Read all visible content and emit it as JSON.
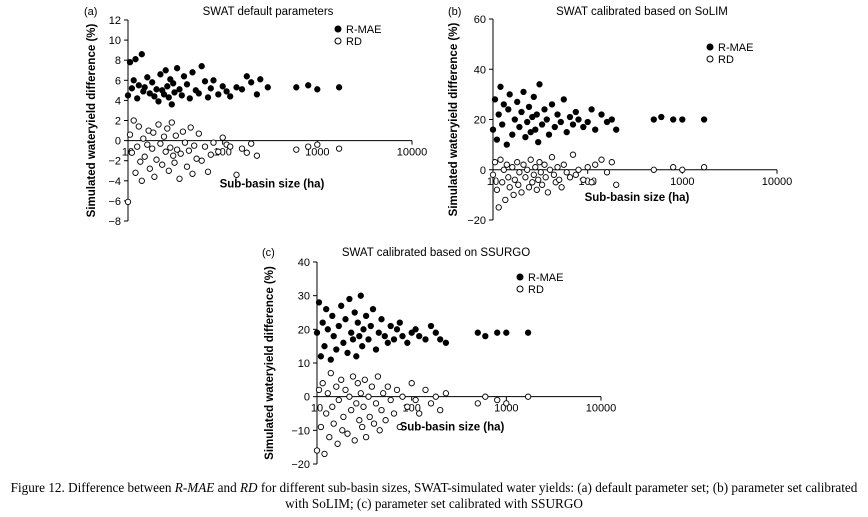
{
  "figure": {
    "caption": {
      "prefix": "Figure 12. Difference between ",
      "term1": "R-MAE",
      "mid1": " and ",
      "term2": "RD",
      "suffix": " for different sub-basin sizes, SWAT-simulated water yields: (a) default parameter set; (b) parameter set calibrated with SoLIM; (c) parameter set calibrated with SSURGO"
    }
  },
  "chart_data": [
    {
      "type": "scatter",
      "panel_label": "(a)",
      "title": "SWAT default parameters",
      "xlabel": "Sub-basin size (ha)",
      "ylabel": "Simulated wateryield difference (%)",
      "x_scale": "log",
      "xlim": [
        10,
        10000
      ],
      "ylim": [
        -8,
        12
      ],
      "x_ticks": [
        "10",
        "100",
        "1000",
        "10000"
      ],
      "y_ticks": [
        "−8",
        "−6",
        "−4",
        "−2",
        "0",
        "2",
        "4",
        "6",
        "8",
        "10",
        "12"
      ],
      "y_tick_values": [
        -8,
        -6,
        -4,
        -2,
        0,
        2,
        4,
        6,
        8,
        10,
        12
      ],
      "legend_position": "top-right",
      "series": [
        {
          "name": "R-MAE",
          "marker": "filled-circle",
          "x": [
            10,
            10.5,
            11,
            11.5,
            12,
            12.5,
            13,
            14,
            14.5,
            15,
            16,
            17,
            18,
            19,
            20,
            21,
            22,
            23,
            24,
            25,
            26,
            27,
            28,
            29,
            30,
            31,
            33,
            35,
            37,
            39,
            42,
            45,
            48,
            52,
            56,
            60,
            65,
            70,
            75,
            80,
            90,
            100,
            110,
            120,
            140,
            160,
            180,
            200,
            230,
            250,
            300,
            600,
            800,
            1000,
            1700
          ],
          "y": [
            4.5,
            7.8,
            5.2,
            6.0,
            8.1,
            4.2,
            5.5,
            8.6,
            4.9,
            5.3,
            6.3,
            4.7,
            5.8,
            4.4,
            5.1,
            3.9,
            6.6,
            5.0,
            4.6,
            7.0,
            5.4,
            4.3,
            6.1,
            3.6,
            5.7,
            4.8,
            7.2,
            5.1,
            4.5,
            6.4,
            5.6,
            4.2,
            6.8,
            5.0,
            4.7,
            7.4,
            5.9,
            4.3,
            5.2,
            6.0,
            4.6,
            5.4,
            4.9,
            4.4,
            5.3,
            5.1,
            6.4,
            5.8,
            4.6,
            6.1,
            5.3,
            5.3,
            5.5,
            5.1,
            5.3
          ]
        },
        {
          "name": "RD",
          "marker": "open-circle",
          "x": [
            10,
            10.5,
            11,
            11.5,
            12,
            12.5,
            13,
            13.5,
            14,
            14.5,
            15,
            16,
            16.5,
            17,
            18,
            18.5,
            19,
            20,
            21,
            22,
            23,
            24,
            25,
            26,
            27,
            28,
            29,
            30,
            31,
            32,
            33,
            35,
            36,
            38,
            40,
            42,
            44,
            46,
            48,
            50,
            53,
            56,
            60,
            65,
            70,
            75,
            80,
            90,
            100,
            110,
            120,
            140,
            160,
            180,
            200,
            230,
            600,
            800,
            1000,
            1700
          ],
          "y": [
            -6.1,
            0.6,
            -1.2,
            2.0,
            -3.2,
            -0.6,
            1.4,
            -2.1,
            -4.0,
            0.2,
            -1.6,
            -0.4,
            1.0,
            -2.8,
            -0.8,
            0.8,
            -3.6,
            -1.9,
            1.6,
            -0.3,
            -2.4,
            0.4,
            -1.1,
            1.2,
            -3.0,
            -0.7,
            1.8,
            -1.5,
            -2.2,
            0.5,
            -0.9,
            -3.8,
            -1.3,
            0.9,
            -0.2,
            -2.6,
            -1.0,
            1.3,
            -3.3,
            -0.5,
            -1.8,
            0.7,
            -2.0,
            -0.6,
            -3.1,
            -1.4,
            -0.2,
            -1.1,
            0.3,
            -0.4,
            -0.6,
            -3.4,
            -0.8,
            -1.2,
            -0.3,
            -1.5,
            -0.9,
            -0.6,
            -0.4,
            -0.8
          ]
        }
      ]
    },
    {
      "type": "scatter",
      "panel_label": "(b)",
      "title": "SWAT calibrated based on SoLIM",
      "xlabel": "Sub-basin size (ha)",
      "ylabel": "Simulated wateryield difference (%)",
      "x_scale": "log",
      "xlim": [
        10,
        10000
      ],
      "ylim": [
        -20,
        60
      ],
      "x_ticks": [
        "10",
        "100",
        "1000",
        "10000"
      ],
      "y_ticks": [
        "−20",
        "0",
        "20",
        "40",
        "60"
      ],
      "y_tick_values": [
        -20,
        0,
        20,
        40,
        60
      ],
      "legend_position": "top-right",
      "series": [
        {
          "name": "R-MAE",
          "marker": "filled-circle",
          "x": [
            10,
            10.5,
            11,
            11.5,
            12,
            12.5,
            13,
            14,
            14.5,
            15,
            16,
            17,
            18,
            19,
            20,
            21,
            22,
            23,
            24,
            25,
            26,
            27,
            28,
            29,
            30,
            31,
            33,
            35,
            37,
            39,
            42,
            45,
            48,
            52,
            56,
            60,
            65,
            70,
            75,
            80,
            90,
            100,
            110,
            120,
            140,
            160,
            180,
            200,
            500,
            600,
            800,
            1000,
            1700
          ],
          "y": [
            16,
            28,
            12,
            22,
            33,
            18,
            26,
            10,
            24,
            30,
            14,
            20,
            27,
            17,
            23,
            31,
            13,
            19,
            25,
            15,
            21,
            29,
            16,
            22,
            11,
            34,
            18,
            24,
            20,
            14,
            26,
            17,
            22,
            19,
            28,
            15,
            21,
            18,
            23,
            20,
            17,
            19,
            24,
            16,
            22,
            19,
            20,
            16,
            20,
            21,
            20,
            20,
            20
          ]
        },
        {
          "name": "RD",
          "marker": "open-circle",
          "x": [
            10,
            10.5,
            11,
            11.5,
            12,
            12.5,
            13,
            13.5,
            14,
            14.5,
            15,
            16,
            16.5,
            17,
            18,
            18.5,
            19,
            20,
            21,
            22,
            23,
            24,
            25,
            26,
            27,
            28,
            29,
            30,
            31,
            32,
            33,
            35,
            36,
            38,
            40,
            42,
            44,
            46,
            48,
            50,
            53,
            56,
            60,
            65,
            70,
            75,
            80,
            90,
            100,
            110,
            120,
            140,
            160,
            180,
            200,
            500,
            800,
            1000,
            1700
          ],
          "y": [
            -2,
            3,
            -8,
            -15,
            4,
            -5,
            0,
            -12,
            2,
            -3,
            -7,
            1,
            -10,
            -4,
            3,
            -6,
            -1,
            -9,
            2,
            -3,
            0,
            -7,
            4,
            -5,
            -2,
            1,
            -8,
            -4,
            3,
            -1,
            -6,
            2,
            -3,
            -9,
            0,
            5,
            -2,
            -5,
            1,
            -4,
            -7,
            2,
            -1,
            -3,
            6,
            -2,
            0,
            -4,
            1,
            -5,
            2,
            4,
            -1,
            3,
            -6,
            0,
            1,
            0,
            1
          ]
        }
      ]
    },
    {
      "type": "scatter",
      "panel_label": "(c)",
      "title": "SWAT calibrated based on SSURGO",
      "xlabel": "Sub-basin size (ha)",
      "ylabel": "Simulated wateryield difference (%)",
      "x_scale": "log",
      "xlim": [
        10,
        10000
      ],
      "ylim": [
        -20,
        40
      ],
      "x_ticks": [
        "10",
        "100",
        "1000",
        "10000"
      ],
      "y_ticks": [
        "−20",
        "−10",
        "0",
        "10",
        "20",
        "30",
        "40"
      ],
      "y_tick_values": [
        -20,
        -10,
        0,
        10,
        20,
        30,
        40
      ],
      "legend_position": "top-right",
      "series": [
        {
          "name": "R-MAE",
          "marker": "filled-circle",
          "x": [
            10,
            10.5,
            11,
            11.5,
            12,
            12.5,
            13,
            14,
            14.5,
            15,
            16,
            17,
            18,
            19,
            20,
            21,
            22,
            23,
            24,
            25,
            26,
            27,
            28,
            29,
            30,
            31,
            33,
            35,
            37,
            39,
            42,
            45,
            48,
            52,
            56,
            60,
            65,
            70,
            75,
            80,
            90,
            100,
            110,
            120,
            140,
            160,
            180,
            200,
            230,
            500,
            600,
            800,
            1000,
            1700
          ],
          "y": [
            19,
            28,
            12,
            22,
            15,
            26,
            20,
            11,
            24,
            18,
            14,
            21,
            27,
            16,
            23,
            13,
            29,
            19,
            17,
            25,
            12,
            22,
            18,
            30,
            15,
            20,
            24,
            17,
            21,
            26,
            14,
            19,
            23,
            18,
            16,
            21,
            17,
            20,
            22,
            18,
            16,
            19,
            20,
            18,
            17,
            21,
            19,
            17,
            16,
            19,
            18,
            19,
            19,
            19
          ]
        },
        {
          "name": "RD",
          "marker": "open-circle",
          "x": [
            10,
            10.5,
            11,
            11.5,
            12,
            12.5,
            13,
            13.5,
            14,
            14.5,
            15,
            16,
            16.5,
            17,
            18,
            18.5,
            19,
            20,
            21,
            22,
            23,
            24,
            25,
            26,
            27,
            28,
            29,
            30,
            31,
            32,
            33,
            35,
            36,
            38,
            40,
            42,
            44,
            46,
            48,
            50,
            53,
            56,
            60,
            65,
            70,
            75,
            80,
            90,
            100,
            110,
            120,
            140,
            160,
            180,
            200,
            230,
            500,
            600,
            800,
            1000,
            1700
          ],
          "y": [
            -16,
            2,
            -9,
            4,
            -17,
            -5,
            1,
            -12,
            7,
            -3,
            -8,
            3,
            -14,
            -1,
            5,
            -10,
            -6,
            2,
            -11,
            0,
            -4,
            6,
            -13,
            -2,
            4,
            -7,
            1,
            -9,
            -3,
            5,
            -12,
            0,
            -6,
            3,
            -8,
            -2,
            6,
            -10,
            -4,
            1,
            -7,
            3,
            -1,
            -5,
            2,
            -9,
            0,
            -3,
            4,
            -1,
            -5,
            2,
            -2,
            0,
            -4,
            1,
            -2,
            0,
            -1,
            -2,
            0
          ]
        }
      ]
    }
  ]
}
